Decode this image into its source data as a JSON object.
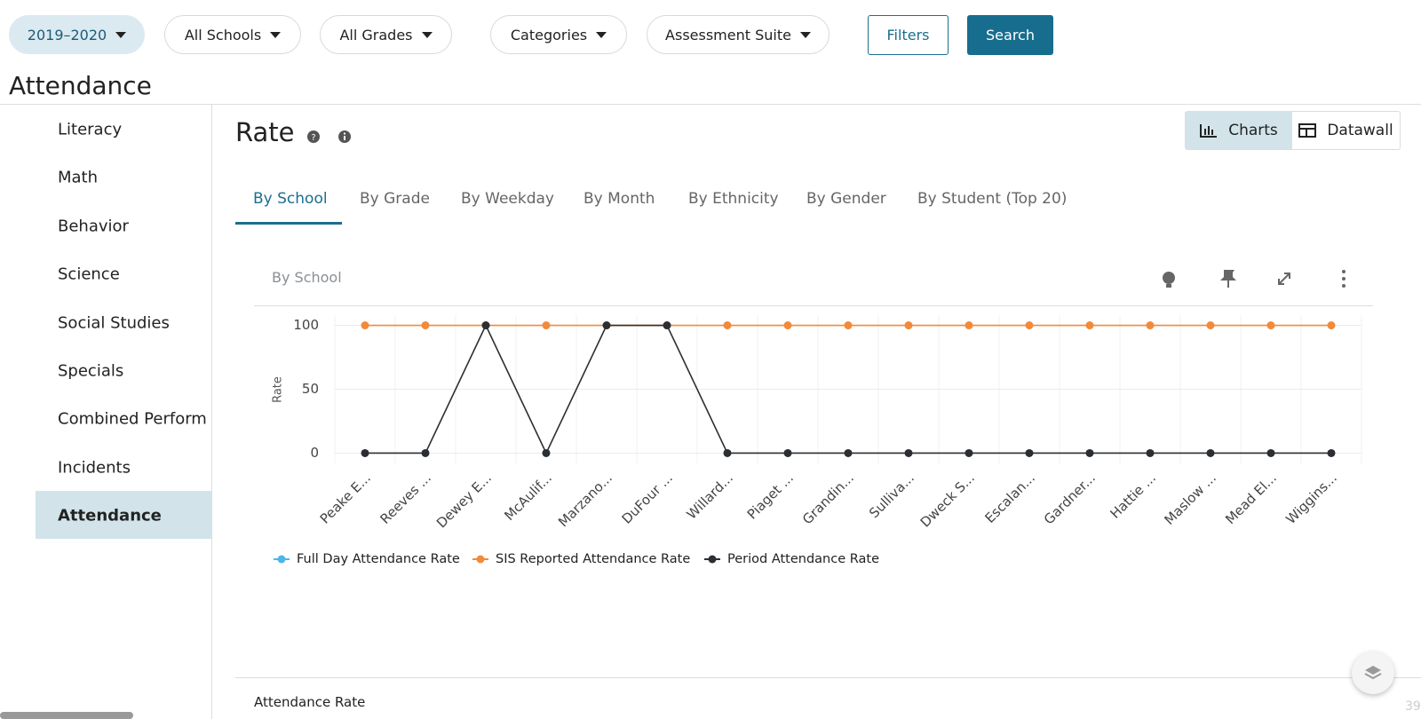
{
  "filters": [
    "2019–2020",
    "All Schools",
    "All Grades",
    "Categories",
    "Assessment Suite"
  ],
  "buttons": [
    "Filters",
    "Search"
  ],
  "page_title": "Attendance",
  "sidebar": [
    "Literacy",
    "Math",
    "Behavior",
    "Science",
    "Social Studies",
    "Specials",
    "Combined Perform",
    "Incidents",
    "Attendance"
  ],
  "section_title": "Rate",
  "view_toggle": [
    "Charts",
    "Datawall"
  ],
  "tabs": [
    "By School",
    "By Grade",
    "By Weekday",
    "By Month",
    "By Ethnicity",
    "By Gender",
    "By Student (Top 20)"
  ],
  "card_title": "By School",
  "chart_data": {
    "type": "line",
    "y_label": "Rate",
    "categories": [
      "Peake E...",
      "Reeves ...",
      "Dewey E...",
      "McAulif...",
      "Marzano...",
      "DuFour ...",
      "Willard...",
      "Piaget ...",
      "Grandin...",
      "Sulliva...",
      "Dweck S...",
      "Escalan...",
      "Gardner...",
      "Hattie ...",
      "Maslow ...",
      "Mead El...",
      "Wiggins..."
    ],
    "series": [
      {
        "name": "Full Day Attendance Rate",
        "color": "#4db6e8",
        "values": [
          null,
          null,
          null,
          null,
          null,
          null,
          null,
          null,
          null,
          null,
          null,
          null,
          null,
          null,
          null,
          null,
          null
        ]
      },
      {
        "name": "SIS Reported Attendance Rate",
        "color": "#f28a3a",
        "values": [
          100,
          100,
          100,
          100,
          100,
          100,
          100,
          100,
          100,
          100,
          100,
          100,
          100,
          100,
          100,
          100,
          100
        ]
      },
      {
        "name": "Period Attendance Rate",
        "color": "#2b2f33",
        "values": [
          0,
          0,
          100,
          0,
          100,
          100,
          0,
          0,
          0,
          0,
          0,
          0,
          0,
          0,
          0,
          0,
          0
        ]
      }
    ],
    "ylim": [
      -8,
      108
    ],
    "yticks": [
      0,
      50,
      100
    ],
    "grid": true
  },
  "footer_title": "Attendance Rate",
  "corner_number": "39"
}
